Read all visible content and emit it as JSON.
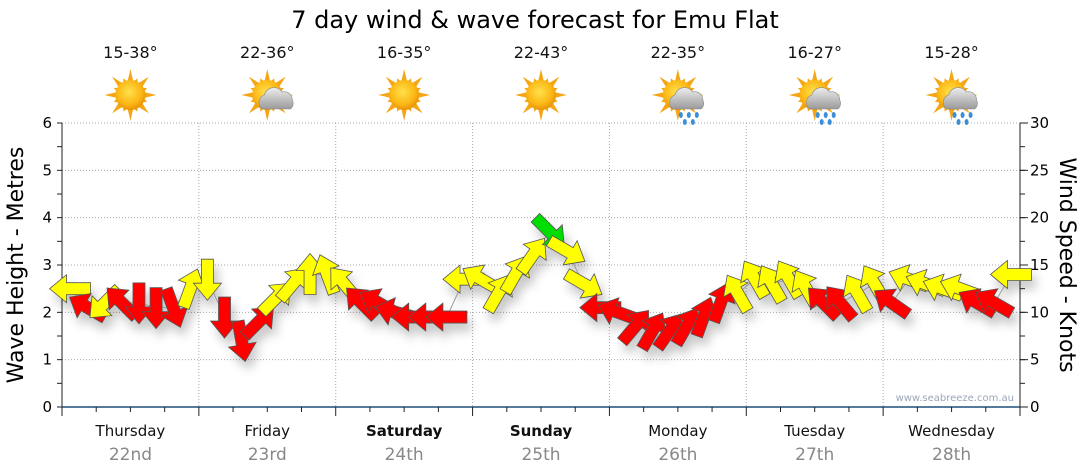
{
  "chart_data": {
    "type": "scatter",
    "title": "7 day wind & wave forecast for Emu Flat",
    "ylabel_left": "Wave Height - Metres",
    "ylabel_right": "Wind Speed - Knots",
    "ylim_left": [
      0,
      6
    ],
    "ylim_right": [
      0,
      30
    ],
    "left_ticks": [
      "0",
      "1",
      "2",
      "3",
      "4",
      "5",
      "6"
    ],
    "right_ticks": [
      "0",
      "5",
      "10",
      "15",
      "20",
      "25",
      "30"
    ],
    "grid": true,
    "days": [
      {
        "name": "Thursday",
        "date": "22nd",
        "bold": false,
        "temp": "15-38°",
        "icon": "sunny"
      },
      {
        "name": "Friday",
        "date": "23rd",
        "bold": false,
        "temp": "22-36°",
        "icon": "partly-cloudy"
      },
      {
        "name": "Saturday",
        "date": "24th",
        "bold": true,
        "temp": "16-35°",
        "icon": "sunny"
      },
      {
        "name": "Sunday",
        "date": "25th",
        "bold": true,
        "temp": "22-43°",
        "icon": "sunny"
      },
      {
        "name": "Monday",
        "date": "26th",
        "bold": false,
        "temp": "22-35°",
        "icon": "partly-cloudy-rain"
      },
      {
        "name": "Tuesday",
        "date": "27th",
        "bold": false,
        "temp": "16-27°",
        "icon": "partly-cloudy-rain"
      },
      {
        "name": "Wednesday",
        "date": "28th",
        "bold": false,
        "temp": "15-28°",
        "icon": "partly-cloudy-rain"
      }
    ],
    "wind_series": {
      "name": "Wind (knots, arrow heading in degrees)",
      "step_hours": 3,
      "speed_knots": [
        12.5,
        10.5,
        11,
        11,
        11,
        10.5,
        10.5,
        12.5,
        13.5,
        9.5,
        7,
        9,
        11.5,
        13,
        14,
        14,
        13,
        11,
        11,
        10,
        9.5,
        9.5,
        9.5,
        13.5,
        13.5,
        12,
        14,
        16,
        18.5,
        16.5,
        13,
        10.5,
        10,
        8.5,
        8,
        8,
        8.5,
        9.5,
        11,
        12,
        13.5,
        13,
        13.5,
        12.5,
        11,
        11,
        12,
        13,
        11,
        13.5,
        13,
        12.5,
        12.5,
        11,
        11,
        14
      ],
      "heading_deg": [
        270,
        300,
        225,
        315,
        180,
        180,
        160,
        20,
        180,
        180,
        170,
        45,
        45,
        40,
        0,
        340,
        320,
        315,
        300,
        285,
        270,
        270,
        270,
        270,
        300,
        30,
        30,
        35,
        135,
        120,
        120,
        270,
        290,
        40,
        30,
        35,
        30,
        20,
        20,
        330,
        330,
        330,
        330,
        330,
        315,
        320,
        330,
        330,
        305,
        290,
        290,
        290,
        290,
        300,
        300,
        270
      ],
      "category": [
        "y",
        "r",
        "y",
        "r",
        "r",
        "r",
        "r",
        "y",
        "y",
        "r",
        "r",
        "r",
        "y",
        "y",
        "y",
        "y",
        "y",
        "r",
        "r",
        "r",
        "r",
        "r",
        "r",
        "y",
        "y",
        "y",
        "y",
        "y",
        "g",
        "y",
        "y",
        "r",
        "r",
        "r",
        "r",
        "r",
        "r",
        "r",
        "r",
        "y",
        "y",
        "y",
        "y",
        "y",
        "r",
        "r",
        "y",
        "y",
        "r",
        "y",
        "y",
        "y",
        "y",
        "r",
        "r",
        "y"
      ]
    },
    "colors": {
      "r": "#ff0000",
      "y": "#ffff00",
      "g": "#00dd00",
      "axis": "#1f4e79",
      "date": "#888888"
    }
  },
  "watermark": "www.seabreeze.com.au"
}
